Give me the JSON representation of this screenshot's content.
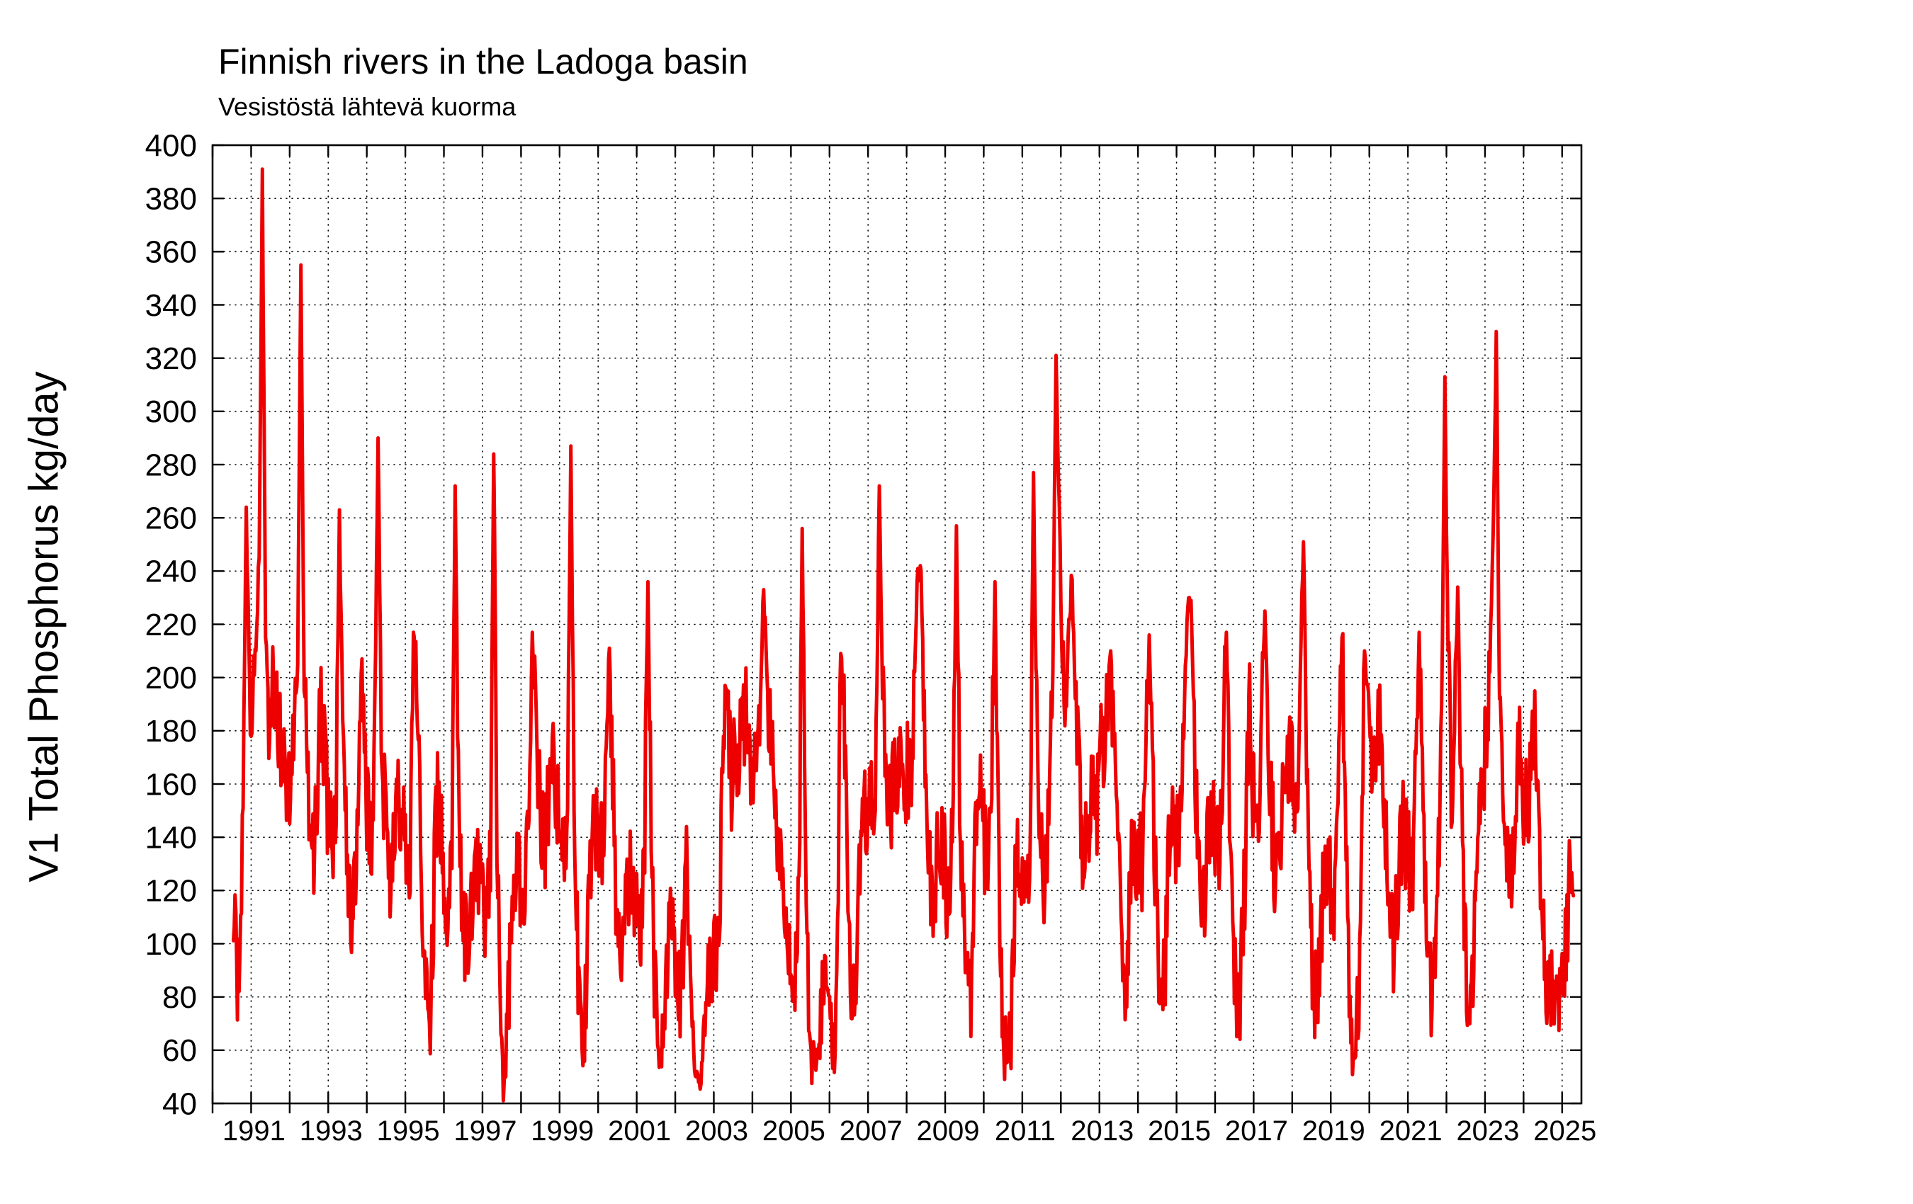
{
  "title": "Finnish rivers in the Ladoga basin",
  "subtitle": "Vesistöstä lähtevä kuorma",
  "chart_data": {
    "type": "line",
    "title": "Finnish rivers in the Ladoga basin",
    "subtitle": "Vesistöstä lähtevä kuorma",
    "xlabel": "",
    "ylabel": "V1 Total Phosphorus kg/day",
    "ylim": [
      40,
      400
    ],
    "ytick_step": 20,
    "xlim": [
      1990.0,
      2025.5
    ],
    "xtick_labels": [
      "1991",
      "1993",
      "1995",
      "1997",
      "1999",
      "2001",
      "2003",
      "2005",
      "2007",
      "2009",
      "2011",
      "2013",
      "2015",
      "2017",
      "2019",
      "2021",
      "2023",
      "2025"
    ],
    "grid": true,
    "grid_style": "dotted",
    "frame_color": "#000000",
    "series": [
      {
        "name": "V1 Total Phosphorus kg/day",
        "color": "#ee0000",
        "monthly": [
          {
            "year": 1990,
            "start_month": 7,
            "values": [
              120,
              95,
              78,
              150,
              264,
              200
            ]
          },
          {
            "year": 1991,
            "start_month": 1,
            "values": [
              190,
              210,
              245,
              391,
              215,
              185,
              195,
              200,
              185,
              175,
              165,
              155
            ]
          },
          {
            "year": 1992,
            "start_month": 1,
            "values": [
              160,
              175,
              205,
              355,
              195,
              165,
              145,
              135,
              150,
              190,
              175,
              155
            ]
          },
          {
            "year": 1993,
            "start_month": 1,
            "values": [
              145,
              135,
              165,
              263,
              175,
              150,
              120,
              100,
              130,
              170,
              207,
              160
            ]
          },
          {
            "year": 1994,
            "start_month": 1,
            "values": [
              150,
              142,
              185,
              290,
              182,
              152,
              132,
              126,
              140,
              162,
              152,
              142
            ]
          },
          {
            "year": 1995,
            "start_month": 1,
            "values": [
              132,
              136,
              217,
              192,
              152,
              112,
              76,
              70,
              102,
              150,
              156,
              140
            ]
          },
          {
            "year": 1996,
            "start_month": 1,
            "values": [
              122,
              116,
              142,
              272,
              162,
              122,
              100,
              96,
              112,
              132,
              126,
              116
            ]
          },
          {
            "year": 1997,
            "start_month": 1,
            "values": [
              112,
              106,
              132,
              284,
              150,
              92,
              41,
              70,
              92,
              122,
              132,
              126
            ]
          },
          {
            "year": 1998,
            "start_month": 1,
            "values": [
              122,
              126,
              162,
              217,
              186,
              162,
              142,
              132,
              152,
              176,
              166,
              152
            ]
          },
          {
            "year": 1999,
            "start_month": 1,
            "values": [
              132,
              122,
              152,
              287,
              162,
              102,
              62,
              58,
              86,
              132,
              152,
              142
            ]
          },
          {
            "year": 2000,
            "start_month": 1,
            "values": [
              132,
              136,
              172,
              211,
              162,
              122,
              96,
              90,
              106,
              126,
              122,
              116
            ]
          },
          {
            "year": 2001,
            "start_month": 1,
            "values": [
              112,
              106,
              142,
              236,
              142,
              92,
              62,
              55,
              66,
              92,
              102,
              96
            ]
          },
          {
            "year": 2002,
            "start_month": 1,
            "values": [
              86,
              82,
              102,
              132,
              92,
              62,
              50,
              48,
              56,
              76,
              92,
              96
            ]
          },
          {
            "year": 2003,
            "start_month": 1,
            "values": [
              96,
              102,
              152,
              197,
              176,
              162,
              170,
              166,
              176,
              186,
              182,
              172
            ]
          },
          {
            "year": 2004,
            "start_month": 1,
            "values": [
              166,
              172,
              192,
              233,
              202,
              182,
              162,
              142,
              132,
              122,
              112,
              102
            ]
          },
          {
            "year": 2005,
            "start_month": 1,
            "values": [
              96,
              92,
              122,
              256,
              142,
              82,
              62,
              56,
              58,
              72,
              82,
              76
            ]
          },
          {
            "year": 2006,
            "start_month": 1,
            "values": [
              72,
              66,
              102,
              209,
              188,
              122,
              82,
              72,
              92,
              132,
              162,
              152
            ]
          },
          {
            "year": 2007,
            "start_month": 1,
            "values": [
              152,
              146,
              172,
              272,
              192,
              162,
              152,
              156,
              162,
              172,
              166,
              162
            ]
          },
          {
            "year": 2008,
            "start_month": 1,
            "values": [
              166,
              162,
              202,
              241,
              240,
              182,
              152,
              122,
              112,
              132,
              142,
              136
            ]
          },
          {
            "year": 2009,
            "start_month": 1,
            "values": [
              122,
              112,
              152,
              257,
              162,
              112,
              82,
              76,
              92,
              142,
              156,
              150
            ]
          },
          {
            "year": 2010,
            "start_month": 1,
            "values": [
              132,
              122,
              162,
              236,
              142,
              86,
              62,
              56,
              66,
              112,
              132,
              126
            ]
          },
          {
            "year": 2011,
            "start_month": 1,
            "values": [
              116,
              112,
              152,
              277,
              182,
              142,
              122,
              132,
              162,
              202,
              321,
              266
            ]
          },
          {
            "year": 2012,
            "start_month": 1,
            "values": [
              202,
              182,
              222,
              237,
              192,
              162,
              142,
              132,
              142,
              162,
              156,
              152
            ]
          },
          {
            "year": 2013,
            "start_month": 1,
            "values": [
              172,
              162,
              192,
              210,
              172,
              152,
              132,
              96,
              82,
              122,
              142,
              136
            ]
          },
          {
            "year": 2014,
            "start_month": 1,
            "values": [
              132,
              126,
              182,
              216,
              162,
              122,
              92,
              72,
              96,
              132,
              146,
              140
            ]
          },
          {
            "year": 2015,
            "start_month": 1,
            "values": [
              142,
              146,
              192,
              226,
              229,
              172,
              142,
              122,
              116,
              132,
              152,
              146
            ]
          },
          {
            "year": 2016,
            "start_month": 1,
            "values": [
              136,
              132,
              172,
              217,
              152,
              112,
              82,
              76,
              102,
              132,
              193,
              162
            ]
          },
          {
            "year": 2017,
            "start_month": 1,
            "values": [
              152,
              146,
              182,
              225,
              182,
              152,
              132,
              126,
              142,
              162,
              172,
              166
            ]
          },
          {
            "year": 2018,
            "start_month": 1,
            "values": [
              162,
              152,
              202,
              251,
              172,
              122,
              86,
              76,
              92,
              116,
              126,
              122
            ]
          },
          {
            "year": 2019,
            "start_month": 1,
            "values": [
              116,
              122,
              172,
              215,
              152,
              92,
              62,
              57,
              72,
              122,
              210,
              182
            ]
          },
          {
            "year": 2020,
            "start_month": 1,
            "values": [
              172,
              176,
              181,
              178,
              162,
              132,
              102,
              96,
              112,
              132,
              142,
              136
            ]
          },
          {
            "year": 2021,
            "start_month": 1,
            "values": [
              132,
              126,
              172,
              217,
              162,
              122,
              92,
              80,
              92,
              132,
              182,
              313
            ]
          },
          {
            "year": 2022,
            "start_month": 1,
            "values": [
              210,
              160,
              176,
              234,
              162,
              116,
              86,
              76,
              96,
              142,
              162,
              156
            ]
          },
          {
            "year": 2023,
            "start_month": 1,
            "values": [
              182,
              202,
              253,
              330,
              192,
              152,
              132,
              122,
              132,
              152,
              186,
              162
            ]
          },
          {
            "year": 2024,
            "start_month": 1,
            "values": [
              152,
              142,
              172,
              195,
              152,
              122,
              96,
              82,
              76,
              86,
              80,
              73
            ]
          },
          {
            "year": 2025,
            "start_month": 1,
            "values": [
              95,
              102,
              125,
              118
            ]
          }
        ]
      }
    ]
  }
}
